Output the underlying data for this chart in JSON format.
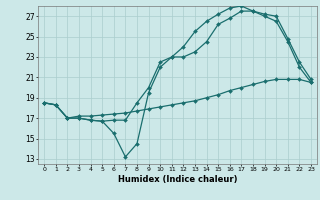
{
  "xlabel": "Humidex (Indice chaleur)",
  "background_color": "#cce8e8",
  "grid_color": "#aacece",
  "line_color": "#1a6e6e",
  "xlim": [
    -0.5,
    23.5
  ],
  "ylim": [
    12.5,
    28.0
  ],
  "yticks": [
    13,
    15,
    17,
    19,
    21,
    23,
    25,
    27
  ],
  "xticks": [
    0,
    1,
    2,
    3,
    4,
    5,
    6,
    7,
    8,
    9,
    10,
    11,
    12,
    13,
    14,
    15,
    16,
    17,
    18,
    19,
    20,
    21,
    22,
    23
  ],
  "line1_x": [
    0,
    1,
    2,
    3,
    4,
    5,
    6,
    7,
    8,
    9,
    10,
    11,
    12,
    13,
    14,
    15,
    16,
    17,
    18,
    19,
    20,
    21,
    22,
    23
  ],
  "line1_y": [
    18.5,
    18.3,
    17.0,
    17.0,
    16.8,
    16.7,
    15.5,
    13.2,
    14.5,
    19.5,
    22.0,
    23.0,
    23.0,
    23.5,
    24.5,
    26.2,
    26.8,
    27.5,
    27.5,
    27.2,
    27.0,
    24.8,
    22.5,
    20.8
  ],
  "line2_x": [
    0,
    1,
    2,
    3,
    4,
    5,
    6,
    7,
    8,
    9,
    10,
    11,
    12,
    13,
    14,
    15,
    16,
    17,
    18,
    19,
    20,
    21,
    22,
    23
  ],
  "line2_y": [
    18.5,
    18.3,
    17.0,
    17.0,
    16.8,
    16.7,
    16.8,
    16.8,
    18.5,
    20.0,
    22.5,
    23.0,
    24.0,
    25.5,
    26.5,
    27.2,
    27.8,
    28.0,
    27.5,
    27.0,
    26.5,
    24.5,
    22.0,
    20.5
  ],
  "line3_x": [
    0,
    1,
    2,
    3,
    4,
    5,
    6,
    7,
    8,
    9,
    10,
    11,
    12,
    13,
    14,
    15,
    16,
    17,
    18,
    19,
    20,
    21,
    22,
    23
  ],
  "line3_y": [
    18.5,
    18.3,
    17.0,
    17.2,
    17.2,
    17.3,
    17.4,
    17.5,
    17.7,
    17.9,
    18.1,
    18.3,
    18.5,
    18.7,
    19.0,
    19.3,
    19.7,
    20.0,
    20.3,
    20.6,
    20.8,
    20.8,
    20.8,
    20.5
  ]
}
